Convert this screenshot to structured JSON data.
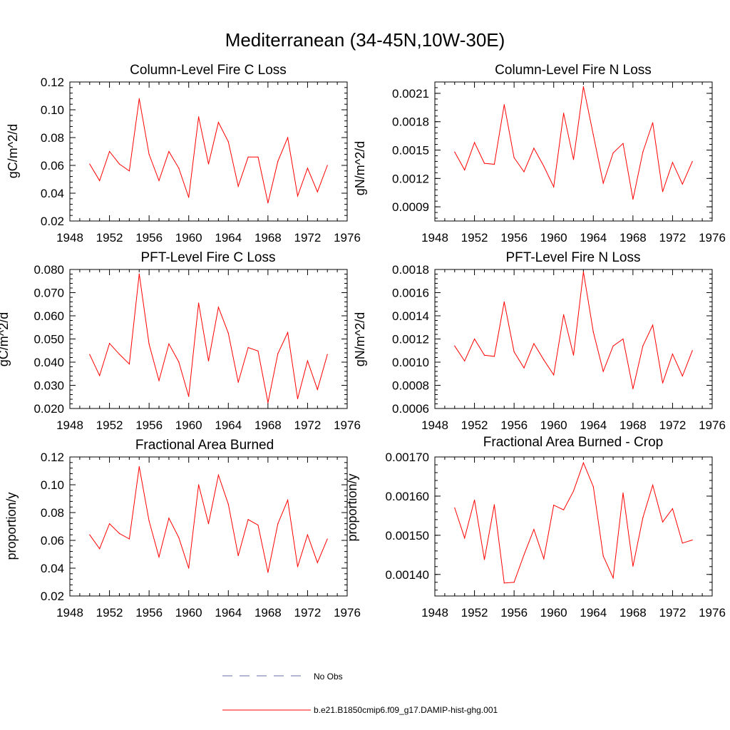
{
  "title": "Mediterranean (34-45N,10W-30E)",
  "legend": {
    "placement": "bottom-center",
    "entries": [
      {
        "label": "No Obs",
        "color": "#6a6aa8",
        "style": "dashed"
      },
      {
        "label": "b.e21.B1850cmip6.f09_g17.DAMIP-hist-ghg.001",
        "color": "#ff0000",
        "style": "solid"
      }
    ]
  },
  "chart_data": [
    {
      "type": "line",
      "title": "Column-Level Fire C Loss",
      "ylabel": "gC/m^2/d",
      "xlim": [
        1948,
        1976
      ],
      "xticks": [
        1948,
        1952,
        1956,
        1960,
        1964,
        1968,
        1972,
        1976
      ],
      "ylim": [
        0.02,
        0.12
      ],
      "yticks": [
        0.02,
        0.04,
        0.06,
        0.08,
        0.1,
        0.12
      ],
      "ytick_labels": [
        "0.02",
        "0.04",
        "0.06",
        "0.08",
        "0.10",
        "0.12"
      ],
      "color": "#ff0000",
      "x": [
        1950,
        1951,
        1952,
        1953,
        1954,
        1955,
        1956,
        1957,
        1958,
        1959,
        1960,
        1961,
        1962,
        1963,
        1964,
        1965,
        1966,
        1967,
        1968,
        1969,
        1970,
        1971,
        1972,
        1973,
        1974
      ],
      "y": [
        0.061,
        0.049,
        0.07,
        0.061,
        0.056,
        0.108,
        0.068,
        0.049,
        0.07,
        0.058,
        0.037,
        0.095,
        0.061,
        0.091,
        0.077,
        0.045,
        0.066,
        0.066,
        0.033,
        0.063,
        0.08,
        0.038,
        0.058,
        0.041,
        0.06
      ]
    },
    {
      "type": "line",
      "title": "Column-Level Fire N Loss",
      "ylabel": "gN/m^2/d",
      "xlim": [
        1948,
        1976
      ],
      "xticks": [
        1948,
        1952,
        1956,
        1960,
        1964,
        1968,
        1972,
        1976
      ],
      "ylim": [
        0.00075,
        0.00222
      ],
      "yticks": [
        0.0009,
        0.0012,
        0.0015,
        0.0018,
        0.0021
      ],
      "ytick_labels": [
        "0.0009",
        "0.0012",
        "0.0015",
        "0.0018",
        "0.0021"
      ],
      "color": "#ff0000",
      "x": [
        1950,
        1951,
        1952,
        1953,
        1954,
        1955,
        1956,
        1957,
        1958,
        1959,
        1960,
        1961,
        1962,
        1963,
        1964,
        1965,
        1966,
        1967,
        1968,
        1969,
        1970,
        1971,
        1972,
        1973,
        1974
      ],
      "y": [
        0.00148,
        0.00129,
        0.00158,
        0.00136,
        0.00135,
        0.00198,
        0.00142,
        0.00127,
        0.00152,
        0.00133,
        0.00111,
        0.00189,
        0.0014,
        0.00217,
        0.00166,
        0.00115,
        0.00147,
        0.00157,
        0.00098,
        0.00148,
        0.00179,
        0.00106,
        0.00137,
        0.00114,
        0.00138
      ]
    },
    {
      "type": "line",
      "title": "PFT-Level Fire C Loss",
      "ylabel": "gC/m^2/d",
      "xlim": [
        1948,
        1976
      ],
      "xticks": [
        1948,
        1952,
        1956,
        1960,
        1964,
        1968,
        1972,
        1976
      ],
      "ylim": [
        0.02,
        0.08
      ],
      "yticks": [
        0.02,
        0.03,
        0.04,
        0.05,
        0.06,
        0.07,
        0.08
      ],
      "ytick_labels": [
        "0.020",
        "0.030",
        "0.040",
        "0.050",
        "0.060",
        "0.070",
        "0.080"
      ],
      "color": "#ff0000",
      "x": [
        1950,
        1951,
        1952,
        1953,
        1954,
        1955,
        1956,
        1957,
        1958,
        1959,
        1960,
        1961,
        1962,
        1963,
        1964,
        1965,
        1966,
        1967,
        1968,
        1969,
        1970,
        1971,
        1972,
        1973,
        1974
      ],
      "y": [
        0.0433,
        0.0342,
        0.0481,
        0.0434,
        0.0392,
        0.0781,
        0.0478,
        0.032,
        0.0479,
        0.0401,
        0.0252,
        0.0655,
        0.0405,
        0.0637,
        0.0525,
        0.0313,
        0.0463,
        0.0448,
        0.0225,
        0.0437,
        0.0528,
        0.0242,
        0.0406,
        0.0282,
        0.0433
      ]
    },
    {
      "type": "line",
      "title": "PFT-Level Fire N Loss",
      "ylabel": "gN/m^2/d",
      "xlim": [
        1948,
        1976
      ],
      "xticks": [
        1948,
        1952,
        1956,
        1960,
        1964,
        1968,
        1972,
        1976
      ],
      "ylim": [
        0.0006,
        0.0018
      ],
      "yticks": [
        0.0006,
        0.0008,
        0.001,
        0.0012,
        0.0014,
        0.0016,
        0.0018
      ],
      "ytick_labels": [
        "0.0006",
        "0.0008",
        "0.0010",
        "0.0012",
        "0.0014",
        "0.0016",
        "0.0018"
      ],
      "color": "#ff0000",
      "x": [
        1950,
        1951,
        1952,
        1953,
        1954,
        1955,
        1956,
        1957,
        1958,
        1959,
        1960,
        1961,
        1962,
        1963,
        1964,
        1965,
        1966,
        1967,
        1968,
        1969,
        1970,
        1971,
        1972,
        1973,
        1974
      ],
      "y": [
        0.00114,
        0.00101,
        0.0012,
        0.00106,
        0.00105,
        0.00152,
        0.00109,
        0.00095,
        0.00116,
        0.00102,
        0.00089,
        0.00141,
        0.00106,
        0.00178,
        0.00126,
        0.00092,
        0.00114,
        0.0012,
        0.00077,
        0.00114,
        0.00132,
        0.00082,
        0.00107,
        0.00088,
        0.0011
      ]
    },
    {
      "type": "line",
      "title": "Fractional Area Burned",
      "ylabel": "proportion/y",
      "xlim": [
        1948,
        1976
      ],
      "xticks": [
        1948,
        1952,
        1956,
        1960,
        1964,
        1968,
        1972,
        1976
      ],
      "ylim": [
        0.02,
        0.12
      ],
      "yticks": [
        0.02,
        0.04,
        0.06,
        0.08,
        0.1,
        0.12
      ],
      "ytick_labels": [
        "0.02",
        "0.04",
        "0.06",
        "0.08",
        "0.10",
        "0.12"
      ],
      "color": "#ff0000",
      "x": [
        1950,
        1951,
        1952,
        1953,
        1954,
        1955,
        1956,
        1957,
        1958,
        1959,
        1960,
        1961,
        1962,
        1963,
        1964,
        1965,
        1966,
        1967,
        1968,
        1969,
        1970,
        1971,
        1972,
        1973,
        1974
      ],
      "y": [
        0.064,
        0.054,
        0.072,
        0.065,
        0.061,
        0.113,
        0.074,
        0.048,
        0.076,
        0.062,
        0.04,
        0.1,
        0.072,
        0.107,
        0.086,
        0.049,
        0.075,
        0.071,
        0.037,
        0.072,
        0.089,
        0.041,
        0.064,
        0.044,
        0.061
      ]
    },
    {
      "type": "line",
      "title": "Fractional Area Burned - Crop",
      "ylabel": "proportion/y",
      "xlim": [
        1948,
        1976
      ],
      "xticks": [
        1948,
        1952,
        1956,
        1960,
        1964,
        1968,
        1972,
        1976
      ],
      "ylim": [
        0.001345,
        0.0017
      ],
      "yticks": [
        0.0014,
        0.0015,
        0.0016,
        0.0017
      ],
      "ytick_labels": [
        "0.00140",
        "0.00150",
        "0.00160",
        "0.00170"
      ],
      "color": "#ff0000",
      "x": [
        1950,
        1951,
        1952,
        1953,
        1954,
        1955,
        1956,
        1957,
        1958,
        1959,
        1960,
        1961,
        1962,
        1963,
        1964,
        1965,
        1966,
        1967,
        1968,
        1969,
        1970,
        1971,
        1972,
        1973,
        1974
      ],
      "y": [
        0.00157,
        0.001493,
        0.00159,
        0.001438,
        0.001578,
        0.001378,
        0.00138,
        0.00145,
        0.001515,
        0.00144,
        0.001577,
        0.001565,
        0.001613,
        0.001685,
        0.001624,
        0.001447,
        0.001391,
        0.001608,
        0.001421,
        0.001545,
        0.001628,
        0.001534,
        0.001568,
        0.00148,
        0.001488
      ]
    }
  ]
}
